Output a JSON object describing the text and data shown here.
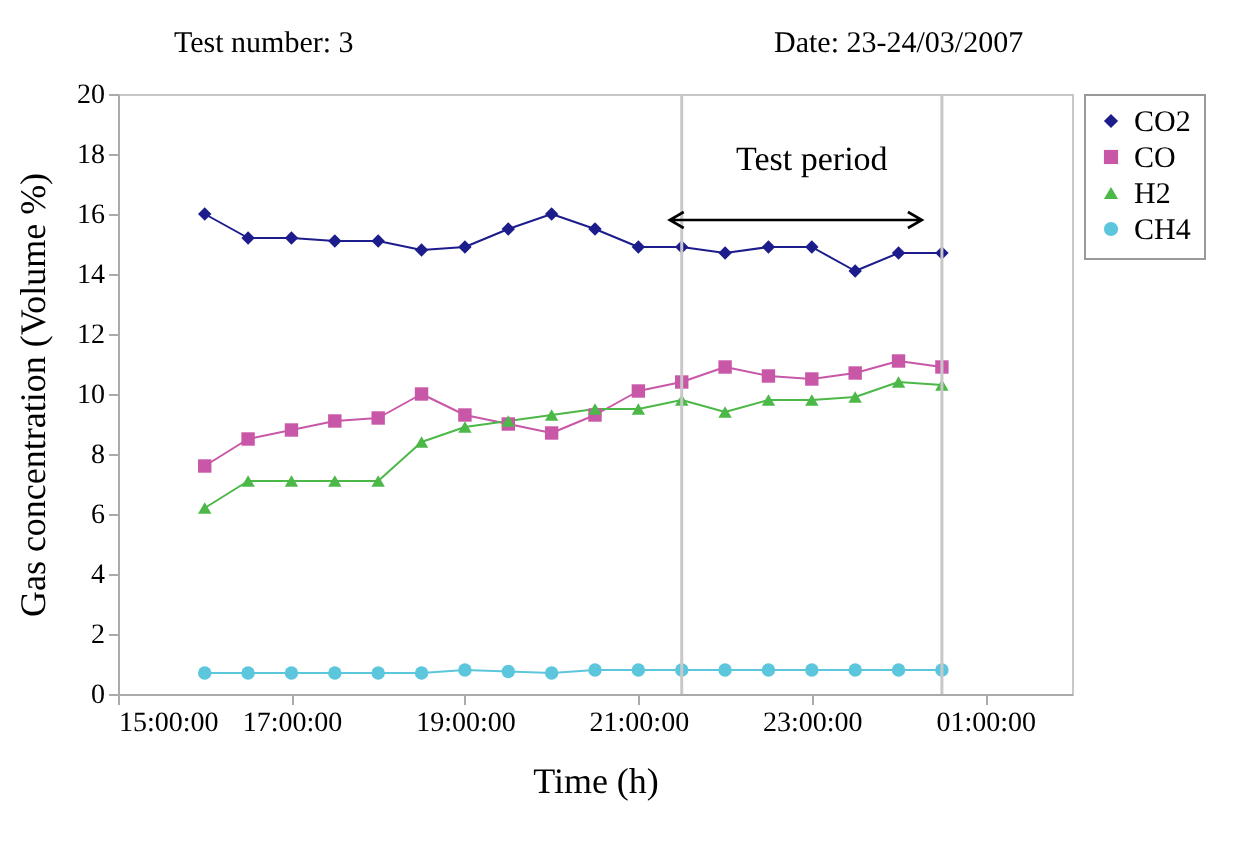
{
  "chart_data": {
    "type": "line",
    "title": "Test number: 3",
    "subtitle": "Date: 23-24/03/2007",
    "xlabel": "Time (h)",
    "ylabel": "Gas concentration (Volume %)",
    "x": [
      "2007-03-23T16:00",
      "2007-03-23T16:30",
      "2007-03-23T17:00",
      "2007-03-23T17:30",
      "2007-03-23T18:00",
      "2007-03-23T18:30",
      "2007-03-23T19:00",
      "2007-03-23T19:30",
      "2007-03-23T20:00",
      "2007-03-23T20:30",
      "2007-03-23T21:00",
      "2007-03-23T21:30",
      "2007-03-23T22:00",
      "2007-03-23T22:30",
      "2007-03-23T23:00",
      "2007-03-23T23:30",
      "2007-03-24T00:00",
      "2007-03-24T00:30"
    ],
    "series": [
      {
        "name": "CO2",
        "color": "#1c1c8c",
        "marker": "diamond",
        "values": [
          16,
          15.2,
          15.2,
          15.1,
          15.1,
          14.8,
          14.9,
          15.5,
          16,
          15.5,
          14.9,
          14.9,
          14.7,
          14.9,
          14.9,
          14.1,
          14.7,
          14.7
        ]
      },
      {
        "name": "CO",
        "color": "#c957a8",
        "marker": "square",
        "values": [
          7.6,
          8.5,
          8.8,
          9.1,
          9.2,
          10,
          9.3,
          9,
          8.7,
          9.3,
          10.1,
          10.4,
          10.9,
          10.6,
          10.5,
          10.7,
          11.1,
          10.9
        ]
      },
      {
        "name": "H2",
        "color": "#4cb848",
        "marker": "triangle",
        "values": [
          6.2,
          7.1,
          7.1,
          7.1,
          7.1,
          8.4,
          8.9,
          9.1,
          9.3,
          9.5,
          9.5,
          9.8,
          9.4,
          9.8,
          9.8,
          9.9,
          10.4,
          10.3
        ]
      },
      {
        "name": "CH4",
        "color": "#5bc6dc",
        "marker": "circle",
        "values": [
          0.7,
          0.7,
          0.7,
          0.7,
          0.7,
          0.7,
          0.8,
          0.75,
          0.7,
          0.8,
          0.8,
          0.8,
          0.8,
          0.8,
          0.8,
          0.8,
          0.8,
          0.8
        ]
      }
    ],
    "xlim": [
      "2007-03-23T15:00",
      "2007-03-24T02:00"
    ],
    "xticks": [
      {
        "value": "2007-03-23T15:00",
        "label": "15:00:00"
      },
      {
        "value": "2007-03-23T17:00",
        "label": "17:00:00"
      },
      {
        "value": "2007-03-23T19:00",
        "label": "19:00:00"
      },
      {
        "value": "2007-03-23T21:00",
        "label": "21:00:00"
      },
      {
        "value": "2007-03-23T23:00",
        "label": "23:00:00"
      },
      {
        "value": "2007-03-24T01:00",
        "label": "01:00:00"
      }
    ],
    "ylim": [
      0,
      20
    ],
    "yticks": [
      0,
      2,
      4,
      6,
      8,
      10,
      12,
      14,
      16,
      18,
      20
    ],
    "ref_lines": [
      {
        "axis": "x",
        "value": "2007-03-23T21:30"
      },
      {
        "axis": "x",
        "value": "2007-03-24T00:30"
      }
    ],
    "annotations": [
      "Test period"
    ],
    "grid": false,
    "legend": "right"
  }
}
